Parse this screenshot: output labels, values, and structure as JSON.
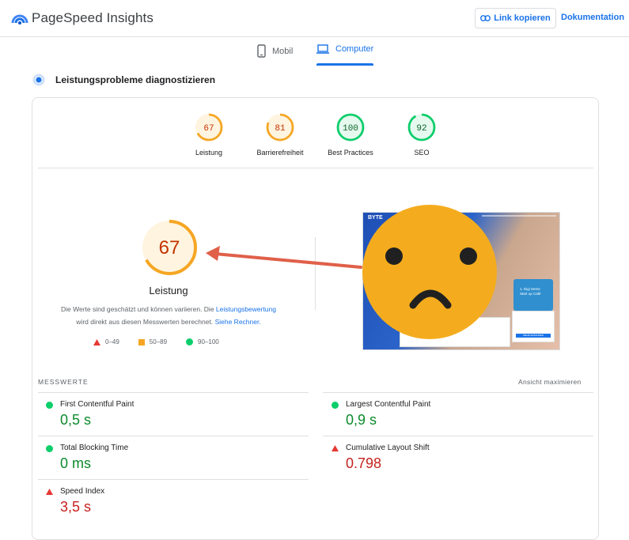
{
  "app": {
    "title": "PageSpeed Insights",
    "logo_icon": "pagespeed-logo"
  },
  "header": {
    "copy_link_label": "Link kopieren",
    "docs_label": "Dokumentation"
  },
  "tabs": [
    {
      "label": "Mobil",
      "icon": "phone-icon",
      "active": false
    },
    {
      "label": "Computer",
      "icon": "laptop-icon",
      "active": true
    }
  ],
  "section": {
    "title": "Leistungsprobleme diagnostizieren"
  },
  "scores": [
    {
      "label": "Leistung",
      "value": "67",
      "fraction": 0.67,
      "status": "average"
    },
    {
      "label": "Barrierefreiheit",
      "value": "81",
      "fraction": 0.81,
      "status": "average"
    },
    {
      "label": "Best Practices",
      "value": "100",
      "fraction": 1.0,
      "status": "pass"
    },
    {
      "label": "SEO",
      "value": "92",
      "fraction": 0.92,
      "status": "pass"
    }
  ],
  "main_score": {
    "value": "67",
    "fraction": 0.67,
    "label": "Leistung",
    "desc_part1": "Die Werte sind geschätzt und können variieren. Die ",
    "desc_link1": "Leistungsbewertung",
    "desc_part2": "wird direkt aus diesen Messwerten berechnet. ",
    "desc_link2": "Siehe Rechner."
  },
  "legend": [
    {
      "range": "0–49",
      "shape": "triangle",
      "color": "#e53935"
    },
    {
      "range": "50–89",
      "shape": "square",
      "color": "#f5a623"
    },
    {
      "range": "90–100",
      "shape": "circle",
      "color": "#0cce6b"
    }
  ],
  "screenshot": {
    "brand": "BYTE",
    "card_line1": "1. Digi Seme",
    "card_line2": "Start up Café",
    "button": "MEHR ERFAHREN"
  },
  "metrics_header": {
    "label": "MESSWERTE",
    "expand_label": "Ansicht maximieren"
  },
  "metrics": [
    {
      "name": "First Contentful Paint",
      "value": "0,5 s",
      "status": "pass"
    },
    {
      "name": "Largest Contentful Paint",
      "value": "0,9 s",
      "status": "pass"
    },
    {
      "name": "Total Blocking Time",
      "value": "0 ms",
      "status": "pass"
    },
    {
      "name": "Cumulative Layout Shift",
      "value": "0.798",
      "status": "fail"
    },
    {
      "name": "Speed Index",
      "value": "3,5 s",
      "status": "fail"
    }
  ],
  "colors": {
    "accent": "#1a73e8",
    "average": "#f5a623",
    "pass": "#0cce6b",
    "fail": "#e53935",
    "arrow": "#e0604a",
    "emoji": "#f4ac1e"
  }
}
